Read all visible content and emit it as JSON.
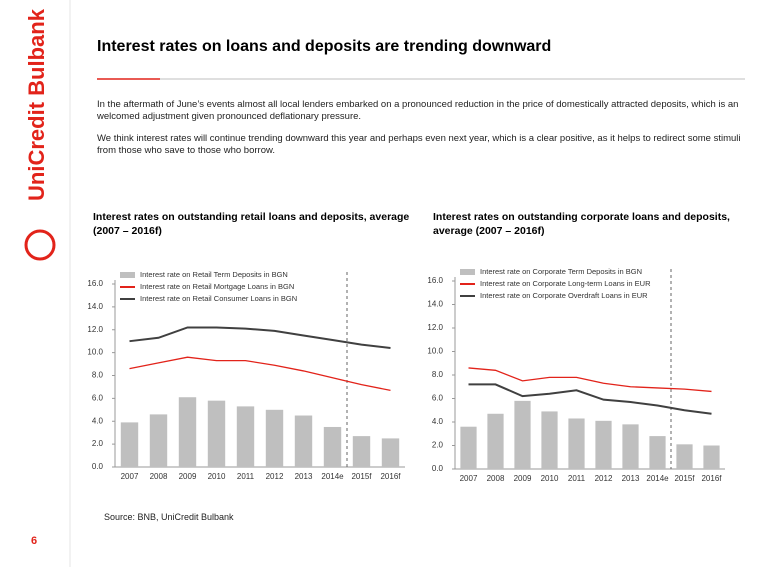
{
  "brand": "UniCredit Bulbank",
  "header": {
    "title": "Interest rates on loans and deposits are trending downward"
  },
  "paragraphs": [
    "In the aftermath of June’s events almost all local lenders embarked on a pronounced reduction in the price of domestically attracted deposits, which is an welcomed adjustment given pronounced deflationary pressure.",
    "We think interest rates will continue trending downward this year and perhaps even next year, which is a clear positive, as it helps to redirect some stimuli from those who save to those who borrow."
  ],
  "chart_data": [
    {
      "type": "combo",
      "title": "Interest rates on outstanding retail loans and deposits, average (2007 – 2016f)",
      "categories": [
        "2007",
        "2008",
        "2009",
        "2010",
        "2011",
        "2012",
        "2013",
        "2014e",
        "2015f",
        "2016f"
      ],
      "series": [
        {
          "name": "Interest rate on Retail Term Deposits in BGN",
          "kind": "bar",
          "color": "#bfbfbf",
          "values": [
            3.9,
            4.6,
            6.1,
            5.8,
            5.3,
            5.0,
            4.5,
            3.5,
            2.7,
            2.5
          ]
        },
        {
          "name": "Interest rate on Retail Mortgage Loans in BGN",
          "kind": "line",
          "color": "#e2231a",
          "values": [
            8.6,
            9.1,
            9.6,
            9.3,
            9.3,
            8.9,
            8.4,
            7.8,
            7.2,
            6.7
          ]
        },
        {
          "name": "Interest rate on Retail Consumer Loans in BGN",
          "kind": "line",
          "color": "#404040",
          "values": [
            11.0,
            11.3,
            12.2,
            12.2,
            12.1,
            11.9,
            11.5,
            11.1,
            10.7,
            10.4
          ]
        }
      ],
      "ylim": [
        0,
        16
      ],
      "yticks": [
        {
          "value": 0,
          "label": "0.0"
        },
        {
          "value": 2,
          "label": "2.0"
        },
        {
          "value": 4,
          "label": "4.0"
        },
        {
          "value": 6,
          "label": "6.0"
        },
        {
          "value": 8,
          "label": "8.0"
        },
        {
          "value": 10,
          "label": "10.0"
        },
        {
          "value": 12,
          "label": "12.0"
        },
        {
          "value": 14,
          "label": "14.0"
        },
        {
          "value": 16,
          "label": "16.0"
        }
      ],
      "legend": "upper left",
      "grid": false
    },
    {
      "type": "combo",
      "title": "Interest rates on outstanding corporate loans and deposits, average (2007 – 2016f)",
      "categories": [
        "2007",
        "2008",
        "2009",
        "2010",
        "2011",
        "2012",
        "2013",
        "2014e",
        "2015f",
        "2016f"
      ],
      "series": [
        {
          "name": "Interest rate on Corporate Term Deposits in BGN",
          "kind": "bar",
          "color": "#bfbfbf",
          "values": [
            3.6,
            4.7,
            5.8,
            4.9,
            4.3,
            4.1,
            3.8,
            2.8,
            2.1,
            2.0
          ]
        },
        {
          "name": "Interest rate on Corporate Long-term Loans in EUR",
          "kind": "line",
          "color": "#e2231a",
          "values": [
            8.6,
            8.4,
            7.5,
            7.8,
            7.8,
            7.3,
            7.0,
            6.9,
            6.8,
            6.6
          ]
        },
        {
          "name": "Interest rate on Corporate Overdraft Loans in EUR",
          "kind": "line",
          "color": "#404040",
          "values": [
            7.2,
            7.2,
            6.2,
            6.4,
            6.7,
            5.9,
            5.7,
            5.4,
            5.0,
            4.7
          ]
        }
      ],
      "ylim": [
        0,
        16
      ],
      "yticks": [
        {
          "value": 0,
          "label": "0.0"
        },
        {
          "value": 2,
          "label": "2.0"
        },
        {
          "value": 4,
          "label": "4.0"
        },
        {
          "value": 6,
          "label": "6.0"
        },
        {
          "value": 8,
          "label": "8.0"
        },
        {
          "value": 10,
          "label": "10.0"
        },
        {
          "value": 12,
          "label": "12.0"
        },
        {
          "value": 14,
          "label": "14.0"
        },
        {
          "value": 16,
          "label": "16.0"
        }
      ],
      "legend": "upper left",
      "grid": false
    }
  ],
  "source": "Source: BNB, UniCredit Bulbank",
  "page_number": "6"
}
